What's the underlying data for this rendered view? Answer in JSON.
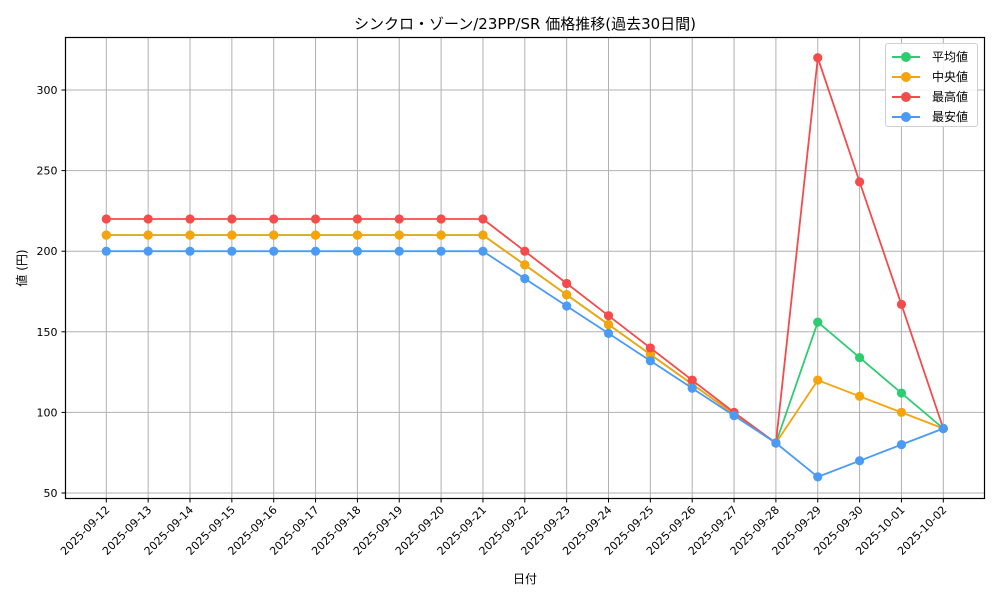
{
  "chart_data": {
    "type": "line",
    "title": "シンクロ・ゾーン/23PP/SR 価格推移(過去30日間)",
    "xlabel": "日付",
    "ylabel": "値 (円)",
    "ylim": [
      47,
      333
    ],
    "yticks": [
      50,
      100,
      150,
      200,
      250,
      300
    ],
    "grid": true,
    "legend_position": "upper right",
    "x": [
      "2025-09-12",
      "2025-09-13",
      "2025-09-14",
      "2025-09-15",
      "2025-09-16",
      "2025-09-17",
      "2025-09-18",
      "2025-09-19",
      "2025-09-20",
      "2025-09-21",
      "2025-09-22",
      "2025-09-23",
      "2025-09-24",
      "2025-09-25",
      "2025-09-26",
      "2025-09-27",
      "2025-09-28",
      "2025-09-29",
      "2025-09-30",
      "2025-10-01",
      "2025-10-02"
    ],
    "series": [
      {
        "name": "平均値",
        "color": "#2ecc71",
        "values": [
          210,
          210,
          210,
          210,
          210,
          210,
          210,
          210,
          210,
          210,
          191.5,
          173,
          154.5,
          136,
          117.5,
          99,
          81,
          156,
          134,
          112,
          90
        ]
      },
      {
        "name": "中央値",
        "color": "#f5a40c",
        "values": [
          210,
          210,
          210,
          210,
          210,
          210,
          210,
          210,
          210,
          210,
          191.5,
          173,
          154.5,
          136,
          117.5,
          99,
          81,
          120,
          110,
          100,
          90
        ]
      },
      {
        "name": "最高値",
        "color": "#f44c4c",
        "values": [
          220,
          220,
          220,
          220,
          220,
          220,
          220,
          220,
          220,
          220,
          200,
          180,
          160,
          140,
          120,
          100,
          81,
          320,
          243,
          167,
          90
        ]
      },
      {
        "name": "最安値",
        "color": "#4b9bf5",
        "values": [
          200,
          200,
          200,
          200,
          200,
          200,
          200,
          200,
          200,
          200,
          183,
          166,
          149,
          132,
          115,
          98,
          81,
          60,
          70,
          80,
          90
        ]
      }
    ]
  },
  "legend": {
    "items": [
      {
        "label": "平均値",
        "color": "#2ecc71"
      },
      {
        "label": "中央値",
        "color": "#f5a40c"
      },
      {
        "label": "最高値",
        "color": "#f44c4c"
      },
      {
        "label": "最安値",
        "color": "#4b9bf5"
      }
    ]
  }
}
